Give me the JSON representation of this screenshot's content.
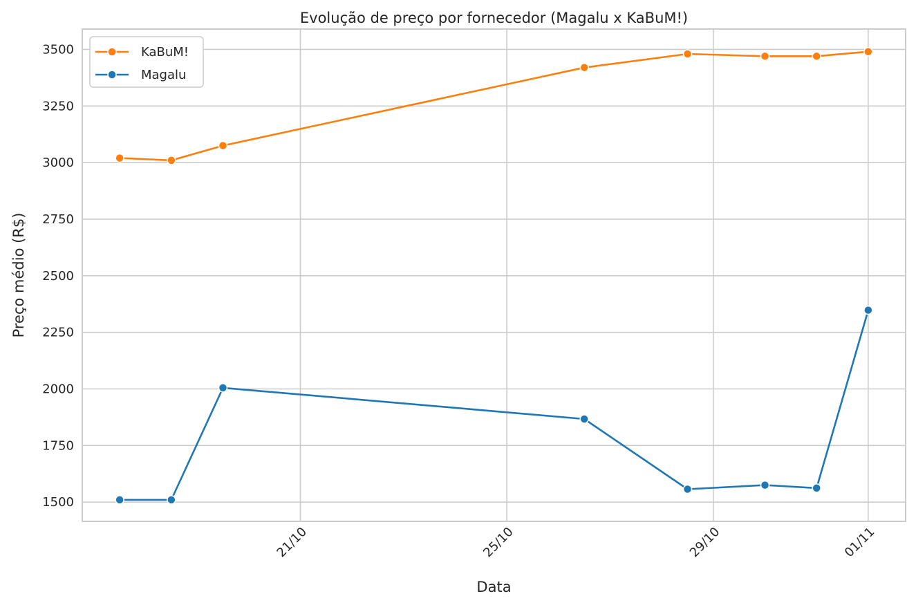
{
  "chart_data": {
    "type": "line",
    "title": "Evolução de preço por fornecedor (Magalu x KaBuM!)",
    "xlabel": "Data",
    "ylabel": "Preço médio (R$)",
    "x_axis_type": "date",
    "x_ticks": [
      "21/10",
      "25/10",
      "29/10",
      "01/11"
    ],
    "y_ticks": [
      1500,
      1750,
      2000,
      2250,
      2500,
      2750,
      3000,
      3250,
      3500
    ],
    "ylim": [
      1415,
      3590
    ],
    "grid": true,
    "legend_position": "top-left",
    "series": [
      {
        "name": "KaBuM!",
        "color": "#ff7f0e",
        "points": [
          {
            "x": "17/10 12:00",
            "y": 3020
          },
          {
            "x": "18/10 12:00",
            "y": 3010
          },
          {
            "x": "19/10 12:00",
            "y": 3075
          },
          {
            "x": "26/10 12:00",
            "y": 3420
          },
          {
            "x": "28/10 12:00",
            "y": 3480
          },
          {
            "x": "30/10 00:00",
            "y": 3470
          },
          {
            "x": "31/10 00:00",
            "y": 3470
          },
          {
            "x": "01/11 00:00",
            "y": 3490
          }
        ]
      },
      {
        "name": "Magalu",
        "color": "#1f77b4",
        "points": [
          {
            "x": "17/10 12:00",
            "y": 1510
          },
          {
            "x": "18/10 12:00",
            "y": 1510
          },
          {
            "x": "19/10 12:00",
            "y": 2005
          },
          {
            "x": "26/10 12:00",
            "y": 1867
          },
          {
            "x": "28/10 12:00",
            "y": 1557
          },
          {
            "x": "30/10 00:00",
            "y": 1575
          },
          {
            "x": "31/10 00:00",
            "y": 1562
          },
          {
            "x": "01/11 00:00",
            "y": 2348
          }
        ]
      }
    ]
  }
}
